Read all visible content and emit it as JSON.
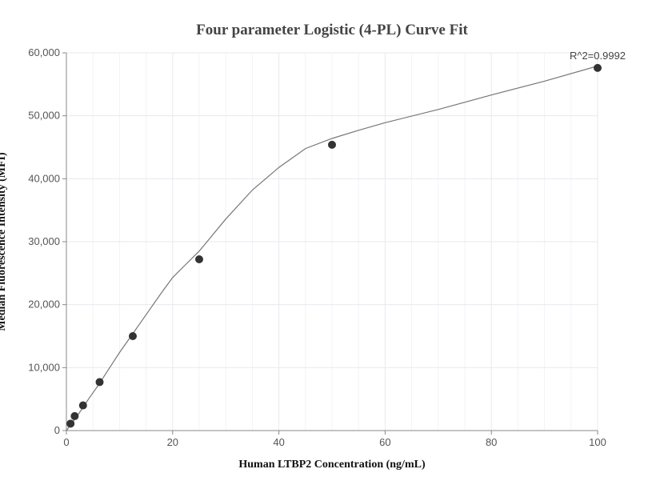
{
  "chart_data": {
    "type": "scatter",
    "title": "Four parameter Logistic (4-PL) Curve Fit",
    "xlabel": "Human LTBP2 Concentration (ng/mL)",
    "ylabel": "Median Fluorescence Intensity (MFI)",
    "xlim": [
      0,
      100
    ],
    "ylim": [
      0,
      60000
    ],
    "x_ticks": [
      0,
      20,
      40,
      60,
      80,
      100
    ],
    "y_ticks": [
      0,
      10000,
      20000,
      30000,
      40000,
      50000,
      60000
    ],
    "x_tick_labels": [
      "0",
      "20",
      "40",
      "60",
      "80",
      "100"
    ],
    "y_tick_labels": [
      "0",
      "10,000",
      "20,000",
      "30,000",
      "40,000",
      "50,000",
      "60,000"
    ],
    "grid": true,
    "annotation": "R^2=0.9992",
    "points": {
      "x": [
        0.78,
        1.56,
        3.13,
        6.25,
        12.5,
        25,
        50,
        100
      ],
      "y": [
        1100,
        2300,
        4000,
        7700,
        15000,
        27200,
        45400,
        57600
      ]
    },
    "fit_curve": {
      "x": [
        0,
        1,
        2,
        3,
        4,
        5,
        6,
        8,
        10,
        12,
        14,
        16,
        18,
        20,
        22,
        25,
        30,
        35,
        40,
        45,
        50,
        55,
        60,
        70,
        80,
        90,
        100
      ],
      "y": [
        0,
        1150,
        2300,
        3500,
        4800,
        6000,
        7200,
        9800,
        12400,
        14800,
        17200,
        19600,
        22000,
        24300,
        26000,
        28500,
        33600,
        38200,
        41800,
        44800,
        46400,
        47700,
        48900,
        51000,
        53300,
        55500,
        57900
      ]
    },
    "colors": {
      "point": "#333333",
      "curve": "#777777",
      "grid": "#e6e9ee",
      "axis": "#888888"
    }
  }
}
